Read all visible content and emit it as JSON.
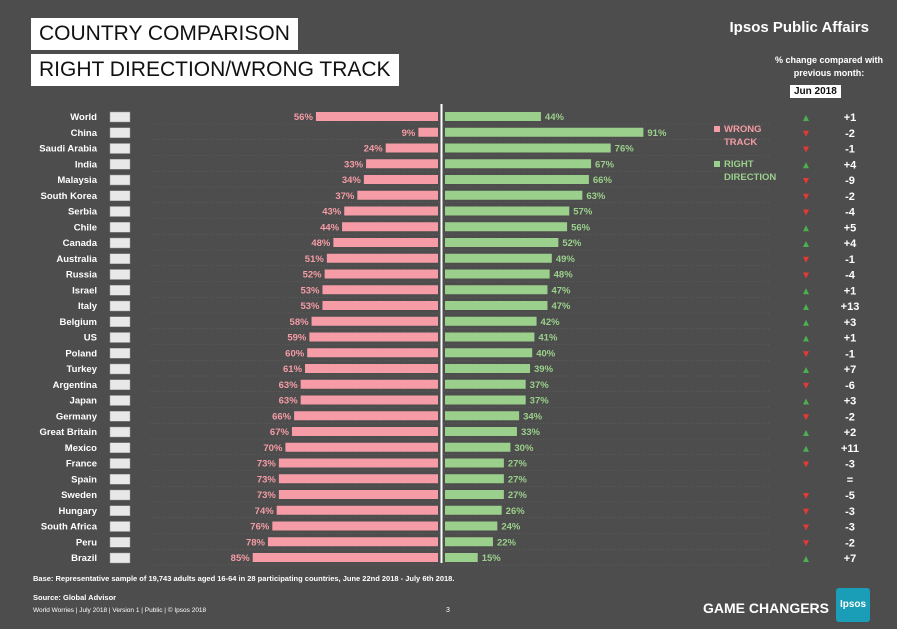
{
  "header": {
    "title_line1": "COUNTRY COMPARISON",
    "title_line2": "RIGHT DIRECTION/WRONG TRACK",
    "brand": "Ipsos Public Affairs",
    "change_label": "% change compared with previous month:",
    "month": "Jun 2018"
  },
  "legend": {
    "wrong": "WRONG TRACK",
    "right": "RIGHT DIRECTION"
  },
  "colors": {
    "wrong": "#f59ca6",
    "right": "#9bd08c",
    "wrong_label": "#f59ca6",
    "right_label": "#9bd08c",
    "up": "#4caf50",
    "down": "#e53935"
  },
  "chart_data": {
    "type": "bar",
    "title": "COUNTRY COMPARISON RIGHT DIRECTION/WRONG TRACK",
    "categories": [
      "World",
      "China",
      "Saudi Arabia",
      "India",
      "Malaysia",
      "South Korea",
      "Serbia",
      "Chile",
      "Canada",
      "Australia",
      "Russia",
      "Israel",
      "Italy",
      "Belgium",
      "US",
      "Poland",
      "Turkey",
      "Argentina",
      "Japan",
      "Germany",
      "Great Britain",
      "Mexico",
      "France",
      "Spain",
      "Sweden",
      "Hungary",
      "South Africa",
      "Peru",
      "Brazil"
    ],
    "series": [
      {
        "name": "WRONG TRACK",
        "values": [
          56,
          9,
          24,
          33,
          34,
          37,
          43,
          44,
          48,
          51,
          52,
          53,
          53,
          58,
          59,
          60,
          61,
          63,
          63,
          66,
          67,
          70,
          73,
          73,
          73,
          74,
          76,
          78,
          85
        ]
      },
      {
        "name": "RIGHT DIRECTION",
        "values": [
          44,
          91,
          76,
          67,
          66,
          63,
          57,
          56,
          52,
          49,
          48,
          47,
          47,
          42,
          41,
          40,
          39,
          37,
          37,
          34,
          33,
          30,
          27,
          27,
          27,
          26,
          24,
          22,
          15
        ]
      }
    ],
    "changes": [
      "+1",
      "-2",
      "-1",
      "+4",
      "-9",
      "-2",
      "-4",
      "+5",
      "+4",
      "-1",
      "-4",
      "+1",
      "+13",
      "+3",
      "+1",
      "-1",
      "+7",
      "-6",
      "+3",
      "-2",
      "+2",
      "+11",
      "-3",
      "=",
      "-5",
      "-3",
      "-3",
      "-2",
      "+7"
    ],
    "xlim": [
      0,
      100
    ]
  },
  "footer": {
    "base": "Base: Representative sample of 19,743 adults aged 16-64 in 28 participating countries, June 22nd 2018 - July 6th 2018.",
    "source": "Source: Global Advisor",
    "meta": "World Worries | July 2018 | Version 1 | Public | © Ipsos 2018",
    "page": "3",
    "tagline": "GAME CHANGERS",
    "logo": "Ipsos"
  }
}
